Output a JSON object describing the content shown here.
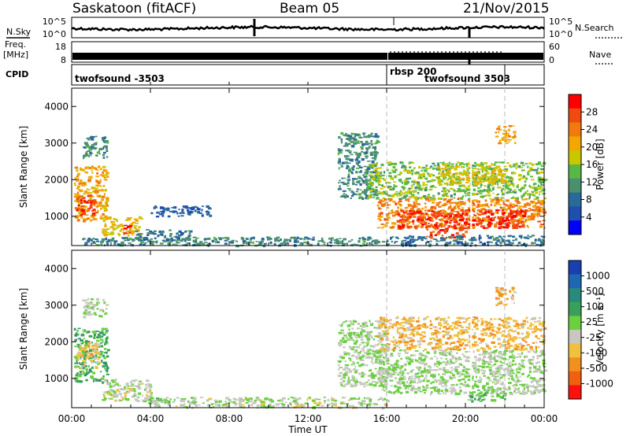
{
  "header": {
    "station": "Saskatoon (fitACF)",
    "beam": "Beam 05",
    "date": "21/Nov/2015"
  },
  "top_strips": {
    "nsky_label": "N.Sky",
    "nsky_ticks": [
      "10^5",
      "10^0"
    ],
    "nsearch_label": "N.Search",
    "nsearch_ticks": [
      "10^5",
      "10^0"
    ],
    "freq_label": "Freq.",
    "freq_unit": "[MHz]",
    "freq_ticks": [
      "18",
      "8"
    ],
    "nave_label": "Nave",
    "nave_ticks": [
      "60",
      "0"
    ],
    "cpid_label": "CPID",
    "cpid_segments": [
      {
        "start_h": 0,
        "end_h": 16,
        "name": "twofsound -3503"
      },
      {
        "start_h": 16,
        "end_h": 22,
        "name": "rbsp 200"
      },
      {
        "start_h": 16,
        "end_h": 22,
        "name": "twofsound 3503"
      }
    ]
  },
  "colors": {
    "power_scale": [
      "#0000ff",
      "#1f4fae",
      "#2a6a99",
      "#4a8f6e",
      "#57b847",
      "#c8c800",
      "#f2a800",
      "#f07a10",
      "#f04a10",
      "#ff0000"
    ],
    "velocity_scale": [
      "#1a3fb0",
      "#1f67b0",
      "#2a8a7a",
      "#3a9f5a",
      "#6ad040",
      "#c8c8c0",
      "#f0c040",
      "#f09020",
      "#f06010",
      "#ff1010"
    ],
    "ground_scatter": "#c8c8c0"
  },
  "chart_data": [
    {
      "type": "heatmap",
      "panel": "power",
      "ylabel": "Slant Range [km]",
      "xlim": [
        0,
        24
      ],
      "ylim": [
        200,
        4500
      ],
      "yticks": [
        1000,
        2000,
        3000,
        4000
      ],
      "colorbar": {
        "label": "Power [dB]",
        "ticks": [
          "28",
          "24",
          "20",
          "16",
          "12",
          "8",
          "4"
        ],
        "range": [
          0,
          30
        ]
      },
      "grid": false,
      "regions": [
        {
          "t0": 0.1,
          "t1": 1.8,
          "r0": 900,
          "r1": 2400,
          "value": 20
        },
        {
          "t0": 0.2,
          "t1": 1.2,
          "r0": 1050,
          "r1": 1600,
          "value": 26
        },
        {
          "t0": 0.5,
          "t1": 1.8,
          "r0": 2600,
          "r1": 3200,
          "value": 10
        },
        {
          "t0": 1.5,
          "t1": 3.5,
          "r0": 500,
          "r1": 1000,
          "value": 18
        },
        {
          "t0": 2.6,
          "t1": 3.0,
          "r0": 550,
          "r1": 800,
          "value": 26
        },
        {
          "t0": 3.0,
          "t1": 6.0,
          "r0": 350,
          "r1": 650,
          "value": 8
        },
        {
          "t0": 4.0,
          "t1": 7.0,
          "r0": 1000,
          "r1": 1300,
          "value": 6
        },
        {
          "t0": 0.5,
          "t1": 16,
          "r0": 220,
          "r1": 450,
          "value": 10
        },
        {
          "t0": 13.5,
          "t1": 15.5,
          "r0": 1500,
          "r1": 3300,
          "value": 10
        },
        {
          "t0": 15.0,
          "t1": 24,
          "r0": 1500,
          "r1": 2500,
          "value": 14
        },
        {
          "t0": 15.5,
          "t1": 24,
          "r0": 700,
          "r1": 1500,
          "value": 22
        },
        {
          "t0": 16.5,
          "t1": 23,
          "r0": 700,
          "r1": 1200,
          "value": 27
        },
        {
          "t0": 18.0,
          "t1": 20.0,
          "r0": 400,
          "r1": 700,
          "value": 26
        },
        {
          "t0": 18.5,
          "t1": 22.0,
          "r0": 1900,
          "r1": 2400,
          "value": 18
        },
        {
          "t0": 21.5,
          "t1": 22.5,
          "r0": 3000,
          "r1": 3500,
          "value": 20
        },
        {
          "t0": 16.0,
          "t1": 24,
          "r0": 220,
          "r1": 500,
          "value": 8
        }
      ]
    },
    {
      "type": "heatmap",
      "panel": "velocity",
      "ylabel": "Slant Range [km]",
      "xlim": [
        0,
        24
      ],
      "ylim": [
        200,
        4500
      ],
      "yticks": [
        1000,
        2000,
        3000,
        4000
      ],
      "colorbar": {
        "label": "Velocity [m s⁻¹]",
        "ticks": [
          "1000",
          "500",
          "100",
          "25",
          "-25",
          "-100",
          "-500",
          "-1000"
        ],
        "range": [
          -1200,
          1200
        ]
      },
      "grid": false,
      "regions": [
        {
          "t0": 0.1,
          "t1": 1.8,
          "r0": 900,
          "r1": 2400,
          "value": 300
        },
        {
          "t0": 0.2,
          "t1": 1.4,
          "r0": 1300,
          "r1": 2000,
          "value": -300
        },
        {
          "t0": 0.5,
          "t1": 1.8,
          "r0": 2700,
          "r1": 3200,
          "value": 0
        },
        {
          "t0": 1.5,
          "t1": 4.0,
          "r0": 400,
          "r1": 1000,
          "value": -80
        },
        {
          "t0": 3.5,
          "t1": 5.0,
          "r0": 350,
          "r1": 500,
          "value": 150
        },
        {
          "t0": 4.0,
          "t1": 16,
          "r0": 220,
          "r1": 500,
          "value": -60
        },
        {
          "t0": 13.5,
          "t1": 16,
          "r0": 800,
          "r1": 2600,
          "value": 0
        },
        {
          "t0": 15.5,
          "t1": 24,
          "r0": 600,
          "r1": 1800,
          "value": 0
        },
        {
          "t0": 15.5,
          "t1": 24,
          "r0": 1800,
          "r1": 2700,
          "value": -400
        },
        {
          "t0": 21.5,
          "t1": 22.5,
          "r0": 3000,
          "r1": 3500,
          "value": -400
        },
        {
          "t0": 20.0,
          "t1": 22.0,
          "r0": 400,
          "r1": 700,
          "value": 200
        }
      ]
    }
  ],
  "xaxis": {
    "label": "Time UT",
    "ticks": [
      "00:00",
      "04:00",
      "08:00",
      "12:00",
      "16:00",
      "20:00",
      "00:00"
    ],
    "tick_hours": [
      0,
      4,
      8,
      12,
      16,
      20,
      24
    ]
  }
}
